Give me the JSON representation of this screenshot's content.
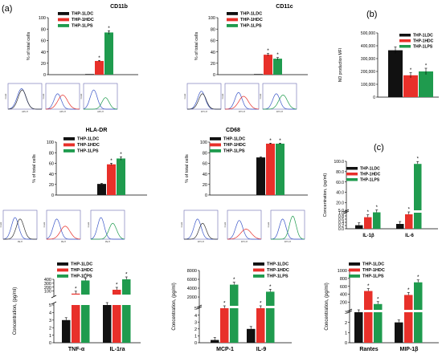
{
  "panel_labels": {
    "a": "(a)",
    "b": "(b)",
    "c": "(c)"
  },
  "colors": {
    "LDC": "#111111",
    "HDC": "#e8302a",
    "LPS": "#1f9b4e",
    "hist_frame": "#6a6ab0"
  },
  "legend_names": [
    "THP-1LDC",
    "THP-1HDC",
    "THP-1LPS"
  ],
  "star": "*",
  "hist_axes": {
    "count": "Count",
    "apc": "APC-H",
    "fitc": "FITC-H",
    "pe": "PE-H"
  },
  "chart_data": [
    {
      "id": "cd11b",
      "type": "bar",
      "title": "CD11b",
      "ylabel": "% of total cells",
      "ylim": [
        0,
        100
      ],
      "yticks": [
        "0",
        "20",
        "40",
        "60",
        "80",
        "100"
      ],
      "series": [
        {
          "name": "THP-1LDC",
          "values": [
            1
          ]
        },
        {
          "name": "THP-1HDC",
          "values": [
            24
          ]
        },
        {
          "name": "THP-1LPS",
          "values": [
            74
          ]
        }
      ],
      "errors": [
        0,
        1,
        3
      ],
      "starred": [
        false,
        true,
        true
      ]
    },
    {
      "id": "cd11c",
      "type": "bar",
      "title": "CD11c",
      "ylabel": "% of total cells",
      "ylim": [
        0,
        100
      ],
      "yticks": [
        "0",
        "20",
        "40",
        "60",
        "80",
        "100"
      ],
      "series": [
        {
          "name": "THP-1LDC",
          "values": [
            1
          ]
        },
        {
          "name": "THP-1HDC",
          "values": [
            35
          ]
        },
        {
          "name": "THP-1LPS",
          "values": [
            28
          ]
        }
      ],
      "errors": [
        0,
        2,
        2
      ],
      "starred": [
        false,
        true,
        true
      ]
    },
    {
      "id": "no",
      "type": "bar",
      "title": "",
      "ylabel": "NO production MFI",
      "ylim": [
        0,
        500000
      ],
      "yticks": [
        "0",
        "100,000",
        "200,000",
        "300,000",
        "400,000",
        "500,000"
      ],
      "series": [
        {
          "name": "THP-1LDC",
          "values": [
            365000
          ]
        },
        {
          "name": "THP-1HDC",
          "values": [
            170000
          ]
        },
        {
          "name": "THP-1LPS",
          "values": [
            200000
          ]
        }
      ],
      "errors": [
        25000,
        20000,
        25000
      ],
      "starred": [
        false,
        true,
        true
      ]
    },
    {
      "id": "hladr",
      "type": "bar",
      "title": "HLA-DR",
      "ylabel": "% of total cells",
      "ylim": [
        0,
        100
      ],
      "yticks": [
        "0",
        "20",
        "40",
        "60",
        "80",
        "100"
      ],
      "series": [
        {
          "name": "THP-1LDC",
          "values": [
            21
          ]
        },
        {
          "name": "THP-1HDC",
          "values": [
            58
          ]
        },
        {
          "name": "THP-1LPS",
          "values": [
            69
          ]
        }
      ],
      "errors": [
        1,
        2,
        3
      ],
      "starred": [
        false,
        true,
        true
      ]
    },
    {
      "id": "cd68",
      "type": "bar",
      "title": "CD68",
      "ylabel": "% of total cells",
      "ylim": [
        0,
        100
      ],
      "yticks": [
        "0",
        "20",
        "40",
        "60",
        "80",
        "100"
      ],
      "series": [
        {
          "name": "THP-1LDC",
          "values": [
            71
          ]
        },
        {
          "name": "THP-1HDC",
          "values": [
            97
          ]
        },
        {
          "name": "THP-1LPS",
          "values": [
            97
          ]
        }
      ],
      "errors": [
        1,
        1,
        1
      ],
      "starred": [
        false,
        true,
        true
      ]
    },
    {
      "id": "il1b_il6",
      "type": "bar",
      "title": "",
      "ylabel": "Concentration, (pg/ml)",
      "categories": [
        "IL-1β",
        "IL-6"
      ],
      "series": [
        {
          "name": "THP-1LDC",
          "values": [
            0.22,
            0.3
          ]
        },
        {
          "name": "THP-1HDC",
          "values": [
            0.72,
            0.9
          ]
        },
        {
          "name": "THP-1LPS",
          "values": [
            1.05,
            95
          ]
        }
      ],
      "starred": [
        [
          false,
          false
        ],
        [
          true,
          true
        ],
        [
          true,
          true
        ]
      ],
      "broken_axis": {
        "lower": [
          0,
          1.0
        ],
        "upper": [
          5.0,
          100.0
        ],
        "lower_ticks": [
          "0.0",
          "0.2",
          "0.4",
          "0.6",
          "0.8",
          "1.0"
        ],
        "upper_ticks": [
          "5.0",
          "20.0",
          "40.0",
          "60.0",
          "80.0",
          "100.0"
        ]
      }
    },
    {
      "id": "tnf_il1ra",
      "type": "bar",
      "title": "",
      "ylabel": "Concentration, (pg/ml)",
      "categories": [
        "TNF-α",
        "IL-1ra"
      ],
      "series": [
        {
          "name": "THP-1LDC",
          "values": [
            3,
            5
          ]
        },
        {
          "name": "THP-1HDC",
          "values": [
            30,
            130
          ]
        },
        {
          "name": "THP-1LPS",
          "values": [
            370,
            440
          ]
        }
      ],
      "starred": [
        [
          false,
          false
        ],
        [
          true,
          true
        ],
        [
          true,
          true
        ]
      ],
      "broken_axis": {
        "lower": [
          0,
          5
        ],
        "upper": [
          5,
          400
        ],
        "lower_ticks": [
          "0",
          "1",
          "2",
          "3",
          "4",
          "5"
        ],
        "upper_ticks": [
          "100",
          "200",
          "300",
          "400"
        ]
      }
    },
    {
      "id": "mcp1_il9",
      "type": "bar",
      "title": "",
      "ylabel": "Concentration, (pg/ml)",
      "categories": [
        "MCP-1",
        "IL-9"
      ],
      "series": [
        {
          "name": "THP-1LDC",
          "values": [
            0.4,
            2
          ]
        },
        {
          "name": "THP-1HDC",
          "values": [
            5,
            5
          ]
        },
        {
          "name": "THP-1LPS",
          "values": [
            4800,
            3200
          ]
        }
      ],
      "starred": [
        [
          false,
          false
        ],
        [
          true,
          true
        ],
        [
          true,
          true
        ]
      ],
      "broken_axis": {
        "lower": [
          0,
          5
        ],
        "upper": [
          5,
          8000
        ],
        "lower_ticks": [
          "0",
          "1",
          "2",
          "3",
          "4",
          "5"
        ],
        "upper_ticks": [
          "2000",
          "4000",
          "6000",
          "8000"
        ]
      }
    },
    {
      "id": "rantes_mip1b",
      "type": "bar",
      "title": "",
      "ylabel": "Concentration, (pg/ml)",
      "categories": [
        "Rantes",
        "MIP-1β"
      ],
      "series": [
        {
          "name": "THP-1LDC",
          "values": [
            3,
            2
          ]
        },
        {
          "name": "THP-1HDC",
          "values": [
            480,
            380
          ]
        },
        {
          "name": "THP-1LPS",
          "values": [
            150,
            700
          ]
        }
      ],
      "starred": [
        [
          false,
          false
        ],
        [
          true,
          true
        ],
        [
          true,
          true
        ]
      ],
      "broken_axis": {
        "lower": [
          0,
          3
        ],
        "upper": [
          3,
          1000
        ],
        "lower_ticks": [
          "0",
          "1",
          "2",
          "3"
        ],
        "upper_ticks": [
          "200",
          "400",
          "600",
          "800",
          "1000"
        ]
      }
    }
  ]
}
